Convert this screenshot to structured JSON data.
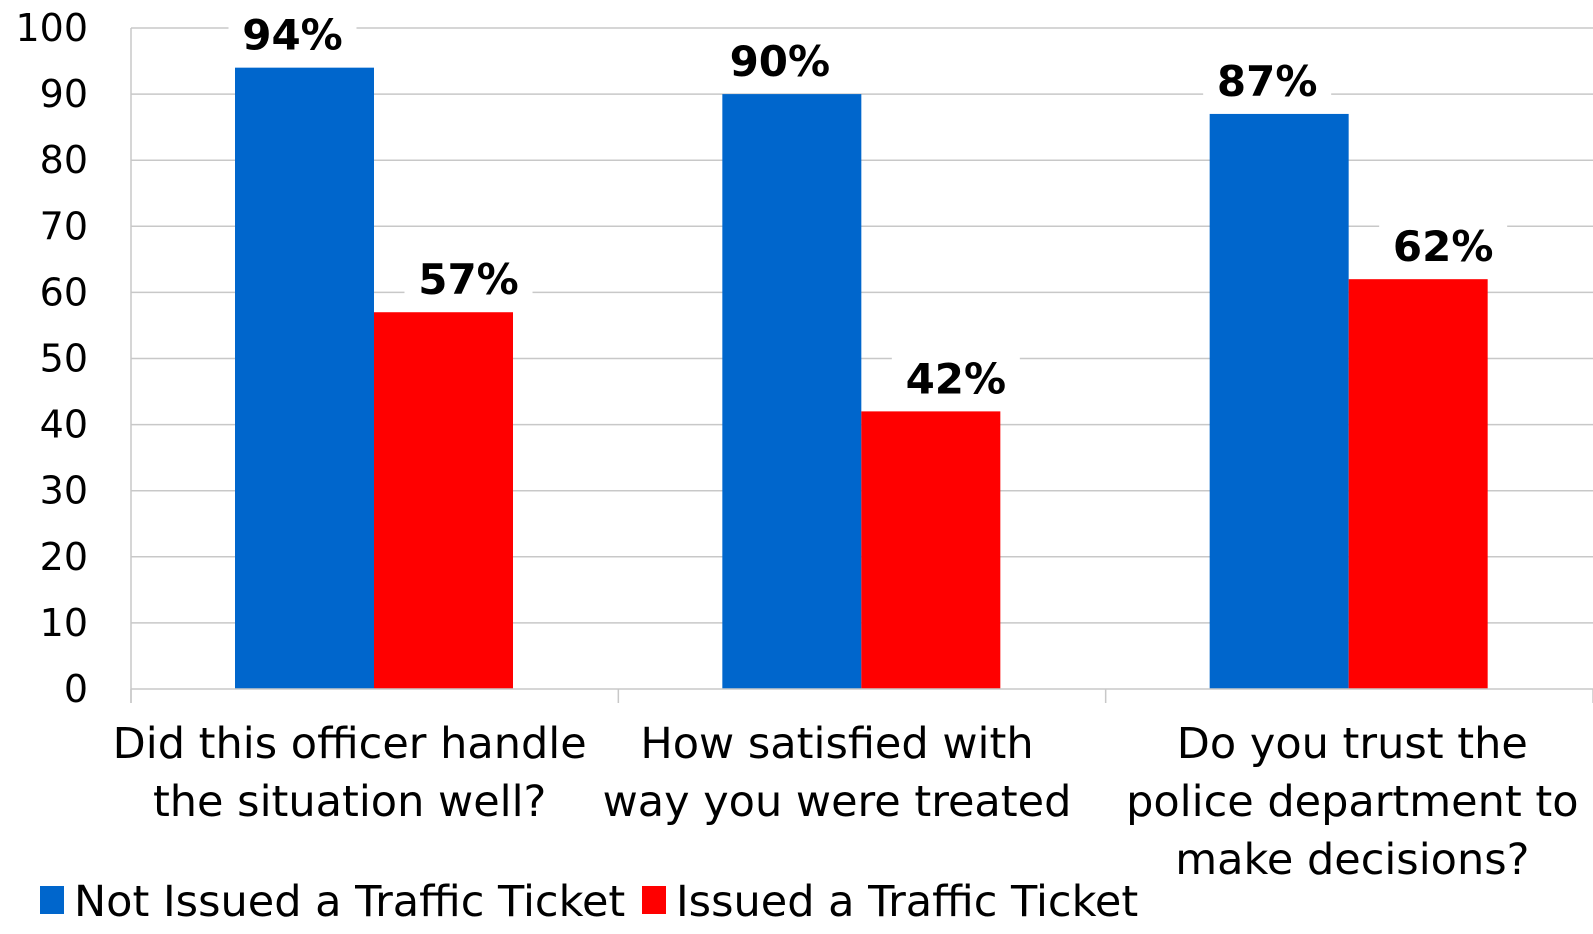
{
  "chart_data": {
    "type": "bar",
    "categories": [
      [
        "Did this officer handle",
        "the situation well?"
      ],
      [
        "How satisfied with",
        "way you were treated"
      ],
      [
        "Do you trust the",
        "police department to",
        "make decisions?"
      ]
    ],
    "series": [
      {
        "name": "Not Issued a Traffic Ticket",
        "values": [
          94,
          90,
          87
        ],
        "labels": [
          "94%",
          "90%",
          "87%"
        ],
        "color": "#0066cc"
      },
      {
        "name": "Issued a Traffic Ticket",
        "values": [
          57,
          42,
          62
        ],
        "labels": [
          "57%",
          "42%",
          "62%"
        ],
        "color": "#ff0000"
      }
    ],
    "ylim": [
      0,
      100
    ],
    "yticks": [
      0,
      10,
      20,
      30,
      40,
      50,
      60,
      70,
      80,
      90,
      100
    ],
    "grid": true,
    "legend": "bottom-left",
    "title": "",
    "xlabel": "",
    "ylabel": ""
  }
}
